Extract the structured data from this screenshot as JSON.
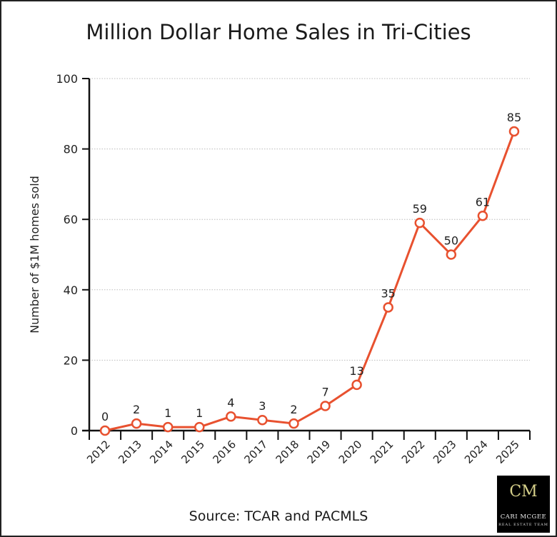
{
  "chart_data": {
    "type": "line",
    "title": "Million Dollar Home Sales in Tri-Cities",
    "xlabel": "",
    "ylabel": "Number of $1M homes sold",
    "source": "Source: TCAR and PACMLS",
    "categories": [
      "2012",
      "2013",
      "2014",
      "2015",
      "2016",
      "2017",
      "2018",
      "2019",
      "2020",
      "2021",
      "2022",
      "2023",
      "2024",
      "2025"
    ],
    "values": [
      0,
      2,
      1,
      1,
      4,
      3,
      2,
      7,
      13,
      35,
      59,
      50,
      61,
      85
    ],
    "ylim": [
      0,
      100
    ],
    "yticks": [
      0,
      20,
      40,
      60,
      80,
      100
    ],
    "grid": "horizontal dotted",
    "line_color": "#e8512f",
    "data_labels": true
  },
  "logo": {
    "monogram": "CM",
    "name": "CARI MCGEE",
    "tagline": "REAL ESTATE TEAM"
  }
}
